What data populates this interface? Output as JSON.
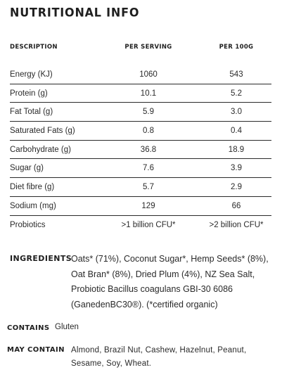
{
  "title": "NUTRITIONAL INFO",
  "table": {
    "headers": [
      "DESCRIPTION",
      "PER SERVING",
      "PER 100G"
    ],
    "rows": [
      [
        "Energy (KJ)",
        "1060",
        "543"
      ],
      [
        "Protein (g)",
        "10.1",
        "5.2"
      ],
      [
        "Fat Total (g)",
        "5.9",
        "3.0"
      ],
      [
        "Saturated Fats (g)",
        "0.8",
        "0.4"
      ],
      [
        "Carbohydrate (g)",
        "36.8",
        "18.9"
      ],
      [
        "Sugar (g)",
        "7.6",
        "3.9"
      ],
      [
        "Diet fibre (g)",
        "5.7",
        "2.9"
      ],
      [
        "Sodium (mg)",
        "129",
        "66"
      ],
      [
        "Probiotics",
        ">1 billion CFU*",
        ">2 billion CFU*"
      ]
    ]
  },
  "ingredients": {
    "label": "INGREDIENTS",
    "text": "Oats* (71%), Coconut Sugar*, Hemp Seeds* (8%), Oat Bran* (8%), Dried Plum (4%), NZ Sea Salt, Probiotic Bacillus coagulans GBI-30 6086 (GanedenBC30®). (*certified organic)"
  },
  "contains": {
    "label": "CONTAINS",
    "text": "Gluten"
  },
  "may_contain": {
    "label": "MAY CONTAIN",
    "text": "Almond, Brazil Nut, Cashew, Hazelnut, Peanut, Sesame, Soy, Wheat."
  }
}
